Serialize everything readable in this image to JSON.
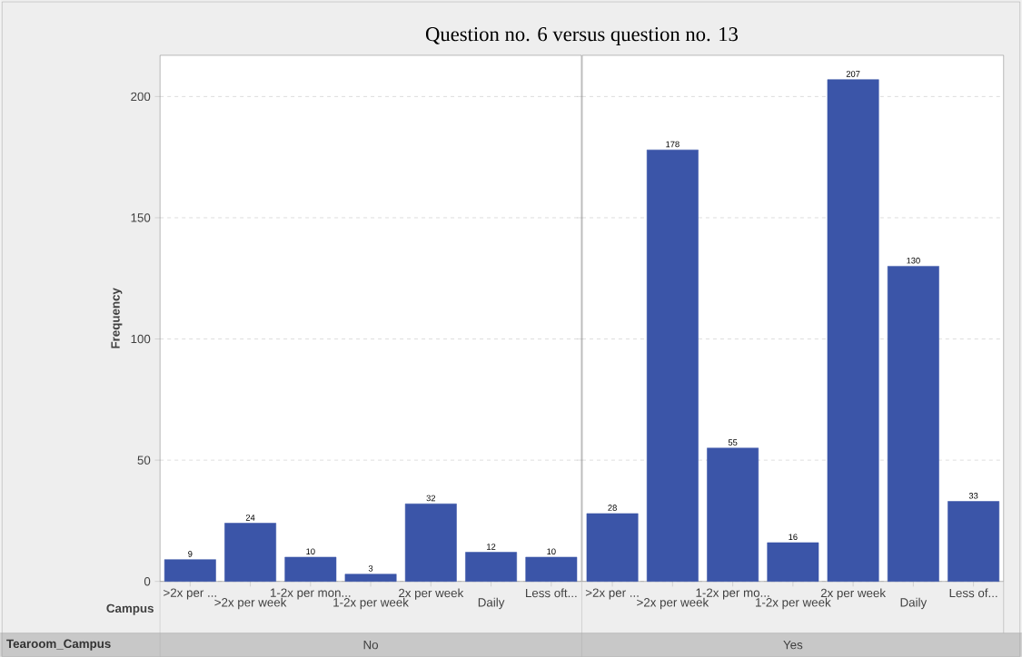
{
  "chart_data": [
    {
      "type": "bar",
      "title": "Question no. 6 versus question no. 13",
      "xlabel": "Campus",
      "ylabel": "Frequency",
      "annotations": [
        "Tearoom_Campus",
        "No"
      ],
      "categories": [
        ">2x per ...",
        ">2x per week",
        "1-2x per mon...",
        "1-2x per week",
        "2x per week",
        "Daily",
        "Less oft..."
      ],
      "values": [
        9,
        24,
        10,
        3,
        32,
        12,
        10
      ],
      "color": "#3b55a8",
      "ylim": [
        0,
        217
      ],
      "yticks": [
        0,
        50,
        100,
        150,
        200
      ],
      "grid": "y",
      "data_labels": true
    },
    {
      "type": "bar",
      "annotations": [
        "Yes"
      ],
      "categories": [
        ">2x per ...",
        ">2x per week",
        "1-2x per mo...",
        "1-2x per week",
        "2x per week",
        "Daily",
        "Less of..."
      ],
      "values": [
        28,
        178,
        55,
        16,
        207,
        130,
        33
      ],
      "color": "#3b55a8",
      "ylim": [
        0,
        217
      ],
      "yticks": [
        0,
        50,
        100,
        150,
        200
      ],
      "grid": "y",
      "data_labels": true,
      "tick_labels": "x"
    }
  ]
}
